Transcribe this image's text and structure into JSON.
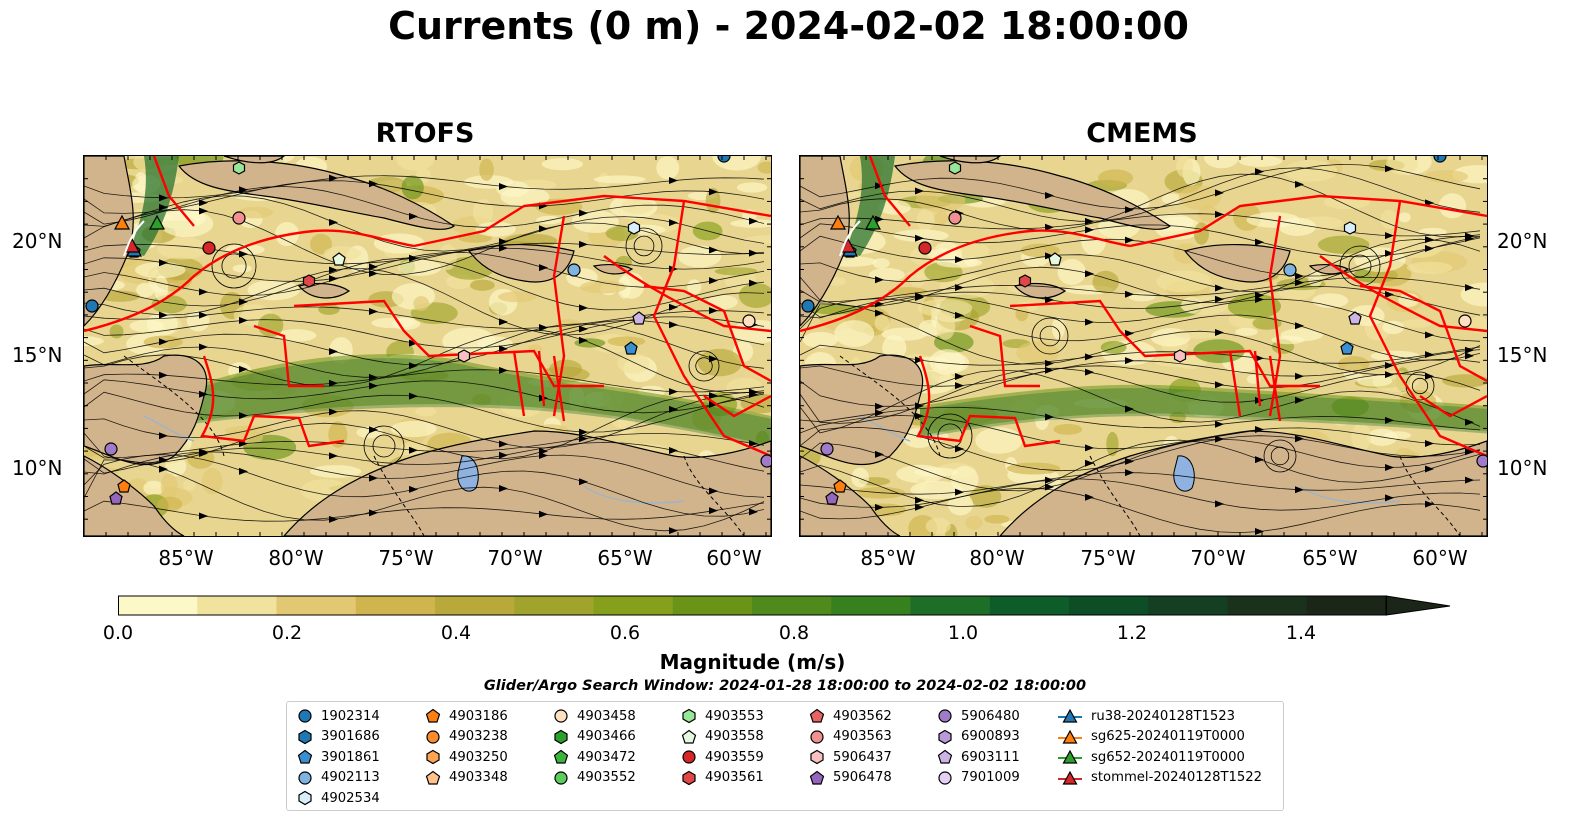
{
  "title": "Currents (0 m) - 2024-02-02 18:00:00",
  "panels": [
    {
      "title": "RTOFS"
    },
    {
      "title": "CMEMS"
    }
  ],
  "lat_labels": [
    "20°N",
    "15°N",
    "10°N"
  ],
  "lon_labels": [
    "85°W",
    "80°W",
    "75°W",
    "70°W",
    "65°W",
    "60°W"
  ],
  "colorbar": {
    "label": "Magnitude (m/s)",
    "ticks": [
      "0.0",
      "0.2",
      "0.4",
      "0.6",
      "0.8",
      "1.0",
      "1.2",
      "1.4"
    ],
    "colors": [
      "#fdf8c8",
      "#f1e29e",
      "#e2c872",
      "#d0b44e",
      "#b9a83a",
      "#a0a42c",
      "#86a01c",
      "#6a9418",
      "#4f8a1c",
      "#37801e",
      "#1e6e28",
      "#0d5c2a",
      "#0d4e26",
      "#143f22",
      "#1a321c",
      "#1c2618"
    ]
  },
  "search_window": "Glider/Argo Search Window: 2024-01-28 18:00:00 to 2024-02-02 18:00:00",
  "legend": [
    [
      {
        "label": "1902314",
        "marker": "circle",
        "color": "#1f77b4"
      },
      {
        "label": "3901686",
        "marker": "hexagon",
        "color": "#1f77b4"
      },
      {
        "label": "3901861",
        "marker": "pentagon",
        "color": "#3a8fd0"
      },
      {
        "label": "4902113",
        "marker": "circle",
        "color": "#7fb3e0"
      },
      {
        "label": "4902534",
        "marker": "hexagon",
        "color": "#d8eef8"
      }
    ],
    [
      {
        "label": "4903186",
        "marker": "pentagon",
        "color": "#ff7f0e"
      },
      {
        "label": "4903238",
        "marker": "circle",
        "color": "#ff8c2a"
      },
      {
        "label": "4903250",
        "marker": "hexagon",
        "color": "#ffa552"
      },
      {
        "label": "4903348",
        "marker": "pentagon",
        "color": "#ffc28a"
      }
    ],
    [
      {
        "label": "4903458",
        "marker": "circle",
        "color": "#ffe0c0"
      },
      {
        "label": "4903466",
        "marker": "hexagon",
        "color": "#2ca02c"
      },
      {
        "label": "4903472",
        "marker": "pentagon",
        "color": "#3cb43c"
      },
      {
        "label": "4903552",
        "marker": "circle",
        "color": "#5ccc5c"
      }
    ],
    [
      {
        "label": "4903553",
        "marker": "hexagon",
        "color": "#98e698"
      },
      {
        "label": "4903558",
        "marker": "pentagon",
        "color": "#e6f8e0"
      },
      {
        "label": "4903559",
        "marker": "circle",
        "color": "#d62728"
      },
      {
        "label": "4903561",
        "marker": "hexagon",
        "color": "#e04848"
      }
    ],
    [
      {
        "label": "4903562",
        "marker": "pentagon",
        "color": "#e86464"
      },
      {
        "label": "4903563",
        "marker": "circle",
        "color": "#f09090"
      },
      {
        "label": "5906437",
        "marker": "hexagon",
        "color": "#f8c0c0"
      },
      {
        "label": "5906478",
        "marker": "pentagon",
        "color": "#9467bd"
      }
    ],
    [
      {
        "label": "5906480",
        "marker": "circle",
        "color": "#a07cc8"
      },
      {
        "label": "6900893",
        "marker": "hexagon",
        "color": "#b89ad8"
      },
      {
        "label": "6903111",
        "marker": "pentagon",
        "color": "#ccb4e4"
      },
      {
        "label": "7901009",
        "marker": "circle",
        "color": "#e4d0f4"
      }
    ],
    [
      {
        "label": "ru38-20240128T1523",
        "marker": "triangle-line",
        "color": "#1f77b4"
      },
      {
        "label": "sg625-20240119T0000",
        "marker": "triangle-line",
        "color": "#ff7f0e"
      },
      {
        "label": "sg652-20240119T0000",
        "marker": "triangle-line",
        "color": "#2ca02c"
      },
      {
        "label": "stommel-20240128T1522",
        "marker": "triangle-line",
        "color": "#d62728"
      }
    ]
  ]
}
